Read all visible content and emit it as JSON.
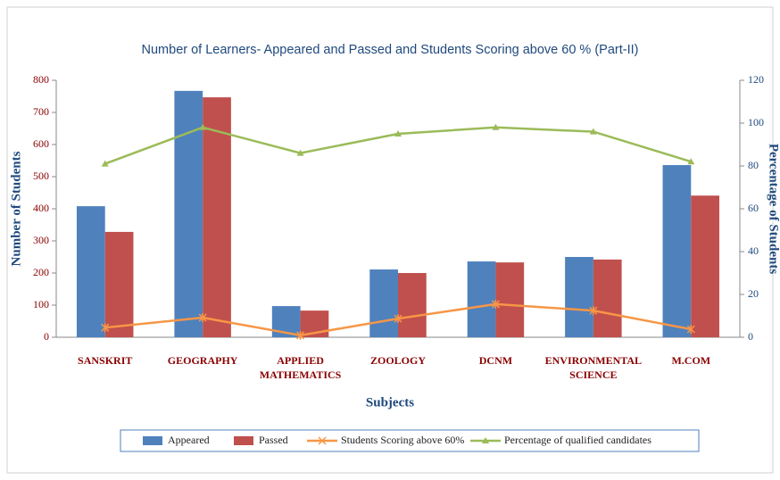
{
  "chart_data": {
    "type": "bar",
    "title": "Number of Learners- Appeared and Passed and Students Scoring above 60 % (Part-II)",
    "xlabel": "Subjects",
    "ylabel": "Number of Students",
    "y2label": "Percentage of Students",
    "categories": [
      "SANSKRIT",
      "GEOGRAPHY",
      "APPLIED MATHEMATICS",
      "ZOOLOGY",
      "DCNM",
      "ENVIRONMENTAL SCIENCE",
      "M.COM"
    ],
    "series": [
      {
        "name": "Appeared",
        "type": "bar",
        "color": "#4f81bd",
        "values": [
          408,
          767,
          97,
          211,
          236,
          250,
          536
        ]
      },
      {
        "name": "Passed",
        "type": "bar",
        "color": "#c0504d",
        "values": [
          328,
          747,
          83,
          200,
          233,
          242,
          441
        ]
      },
      {
        "name": "Students Scoring above 60%",
        "type": "line",
        "marker": "star",
        "color": "#f79646",
        "values": [
          30,
          61,
          6,
          58,
          103,
          83,
          25
        ]
      },
      {
        "name": "Percentage of qualified candidates",
        "type": "line",
        "marker": "triangle",
        "axis": "y2",
        "color": "#9bbb59",
        "values": [
          81,
          98,
          86,
          95,
          98,
          96,
          82
        ]
      }
    ],
    "ylim": [
      0,
      800
    ],
    "yticks": [
      0,
      100,
      200,
      300,
      400,
      500,
      600,
      700,
      800
    ],
    "y2lim": [
      0,
      120
    ],
    "y2ticks": [
      0,
      20,
      40,
      60,
      80,
      100,
      120
    ],
    "legend": "bottom"
  }
}
